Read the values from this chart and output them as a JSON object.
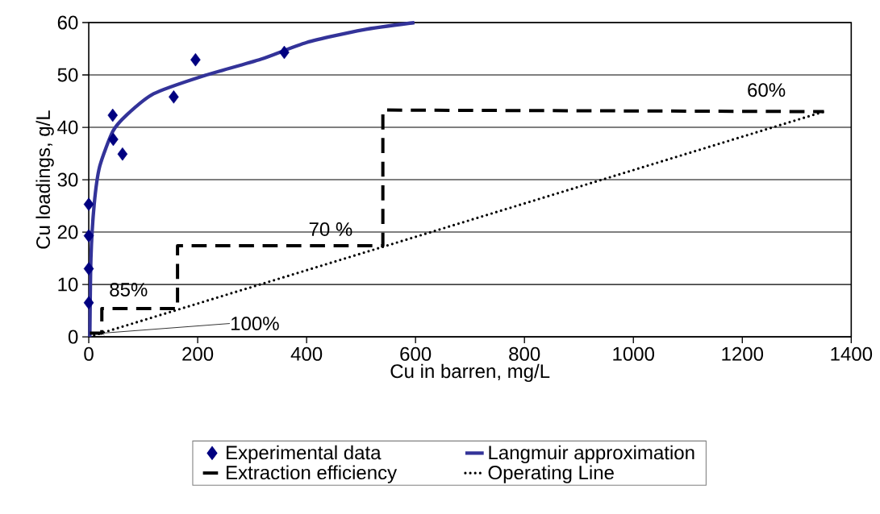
{
  "chart_data": {
    "type": "line",
    "xlabel": "Cu in barren, mg/L",
    "ylabel": "Cu loadings, g/L",
    "xlim": [
      0,
      1400
    ],
    "xticks": [
      0,
      200,
      400,
      600,
      800,
      1000,
      1200,
      1400
    ],
    "ylim": [
      0,
      60
    ],
    "yticks": [
      0,
      10,
      20,
      30,
      40,
      50,
      60
    ],
    "grid": "y",
    "legend": "bottom",
    "series": [
      {
        "name": "Experimental data",
        "type": "scatter",
        "marker": "diamond",
        "color": "#000080",
        "x": [
          0,
          0,
          0,
          0,
          44,
          45,
          62,
          156,
          196,
          359
        ],
        "values": [
          25.3,
          19.3,
          13.0,
          6.5,
          42.3,
          37.7,
          34.9,
          45.8,
          52.9,
          54.3
        ]
      },
      {
        "name": "Langmuir approximation",
        "line_style": "solid",
        "color": "#333399",
        "x": [
          2,
          4,
          10,
          20,
          44,
          69,
          119,
          207,
          316,
          400,
          503,
          598
        ],
        "values": [
          0,
          15,
          25.3,
          32.5,
          39.2,
          42.3,
          46.4,
          49.7,
          53,
          56.2,
          58.6,
          60
        ]
      },
      {
        "name": "Extraction efficiency",
        "line_style": "dashed",
        "color": "#000000",
        "x": [
          2,
          24,
          24,
          163,
          163,
          540,
          540,
          1350
        ],
        "values": [
          0.7,
          0.7,
          5.4,
          5.4,
          17.4,
          17.4,
          43.3,
          43.0
        ]
      },
      {
        "name": "Operating Line",
        "line_style": "dotted",
        "color": "#000000",
        "x": [
          10,
          1350
        ],
        "values": [
          0.3,
          43.0
        ]
      }
    ],
    "annotations": [
      "85%",
      "70 %",
      "60%",
      {
        "text": "100%",
        "x": 24,
        "y": 0.7
      }
    ]
  }
}
